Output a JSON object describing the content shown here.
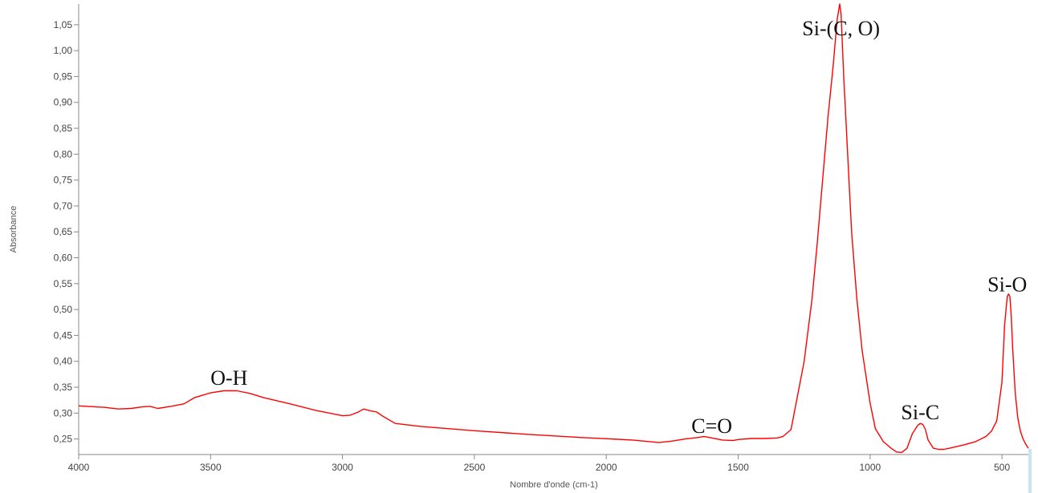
{
  "chart_data": {
    "type": "line",
    "title": "",
    "xlabel": "Nombre d'onde (cm-1)",
    "ylabel": "Absorbance",
    "xlim": [
      4000,
      400
    ],
    "ylim": [
      0.22,
      1.09
    ],
    "x_reversed": true,
    "grid": false,
    "line_color": "#ff0000",
    "x_ticks": [
      4000,
      3500,
      3000,
      2500,
      2000,
      1500,
      1000,
      500
    ],
    "x_tick_labels": [
      "4000",
      "3500",
      "3000",
      "2500",
      "2000",
      "1500",
      "1000",
      "500"
    ],
    "y_ticks": [
      0.25,
      0.3,
      0.35,
      0.4,
      0.45,
      0.5,
      0.55,
      0.6,
      0.65,
      0.7,
      0.75,
      0.8,
      0.85,
      0.9,
      0.95,
      1.0,
      1.05
    ],
    "y_tick_labels": [
      "0,25",
      "0,30",
      "0,35",
      "0,40",
      "0,45",
      "0,50",
      "0,55",
      "0,60",
      "0,65",
      "0,70",
      "0,75",
      "0,80",
      "0,85",
      "0,90",
      "0,95",
      "1,00",
      "1,05"
    ],
    "series": [
      {
        "x": [
          4000,
          3900,
          3850,
          3800,
          3760,
          3730,
          3700,
          3650,
          3600,
          3560,
          3500,
          3450,
          3400,
          3350,
          3300,
          3200,
          3100,
          3000,
          2970,
          2940,
          2920,
          2900,
          2870,
          2850,
          2800,
          2700,
          2500,
          2300,
          2100,
          1900,
          1800,
          1750,
          1700,
          1650,
          1630,
          1600,
          1560,
          1520,
          1500,
          1450,
          1400,
          1350,
          1330,
          1300,
          1280,
          1250,
          1220,
          1200,
          1180,
          1160,
          1140,
          1125,
          1115,
          1110,
          1100,
          1085,
          1070,
          1050,
          1030,
          1000,
          980,
          950,
          920,
          900,
          880,
          860,
          840,
          820,
          810,
          800,
          790,
          780,
          760,
          740,
          720,
          700,
          650,
          600,
          560,
          540,
          520,
          500,
          490,
          480,
          475,
          470,
          465,
          460,
          450,
          440,
          430,
          420,
          410,
          400
        ],
        "y": [
          0.314,
          0.311,
          0.308,
          0.309,
          0.312,
          0.313,
          0.309,
          0.313,
          0.318,
          0.33,
          0.339,
          0.343,
          0.343,
          0.338,
          0.33,
          0.318,
          0.305,
          0.295,
          0.296,
          0.302,
          0.308,
          0.305,
          0.302,
          0.295,
          0.28,
          0.274,
          0.266,
          0.259,
          0.253,
          0.248,
          0.243,
          0.246,
          0.25,
          0.253,
          0.255,
          0.252,
          0.248,
          0.247,
          0.249,
          0.251,
          0.251,
          0.252,
          0.255,
          0.268,
          0.32,
          0.4,
          0.52,
          0.63,
          0.75,
          0.87,
          0.97,
          1.06,
          1.09,
          1.07,
          0.95,
          0.8,
          0.65,
          0.52,
          0.42,
          0.32,
          0.27,
          0.245,
          0.232,
          0.225,
          0.224,
          0.232,
          0.26,
          0.276,
          0.28,
          0.278,
          0.268,
          0.248,
          0.232,
          0.23,
          0.23,
          0.232,
          0.238,
          0.245,
          0.255,
          0.265,
          0.285,
          0.36,
          0.47,
          0.525,
          0.53,
          0.525,
          0.49,
          0.43,
          0.34,
          0.29,
          0.265,
          0.25,
          0.24,
          0.232
        ]
      }
    ],
    "annotations": [
      {
        "text": "O-H",
        "x": 3430,
        "y": 0.355
      },
      {
        "text": "C=O",
        "x": 1600,
        "y": 0.262
      },
      {
        "text": "Si-(C, O)",
        "x": 1110,
        "y": 1.03
      },
      {
        "text": "Si-C",
        "x": 810,
        "y": 0.288
      },
      {
        "text": "Si-O",
        "x": 480,
        "y": 0.535
      }
    ]
  }
}
